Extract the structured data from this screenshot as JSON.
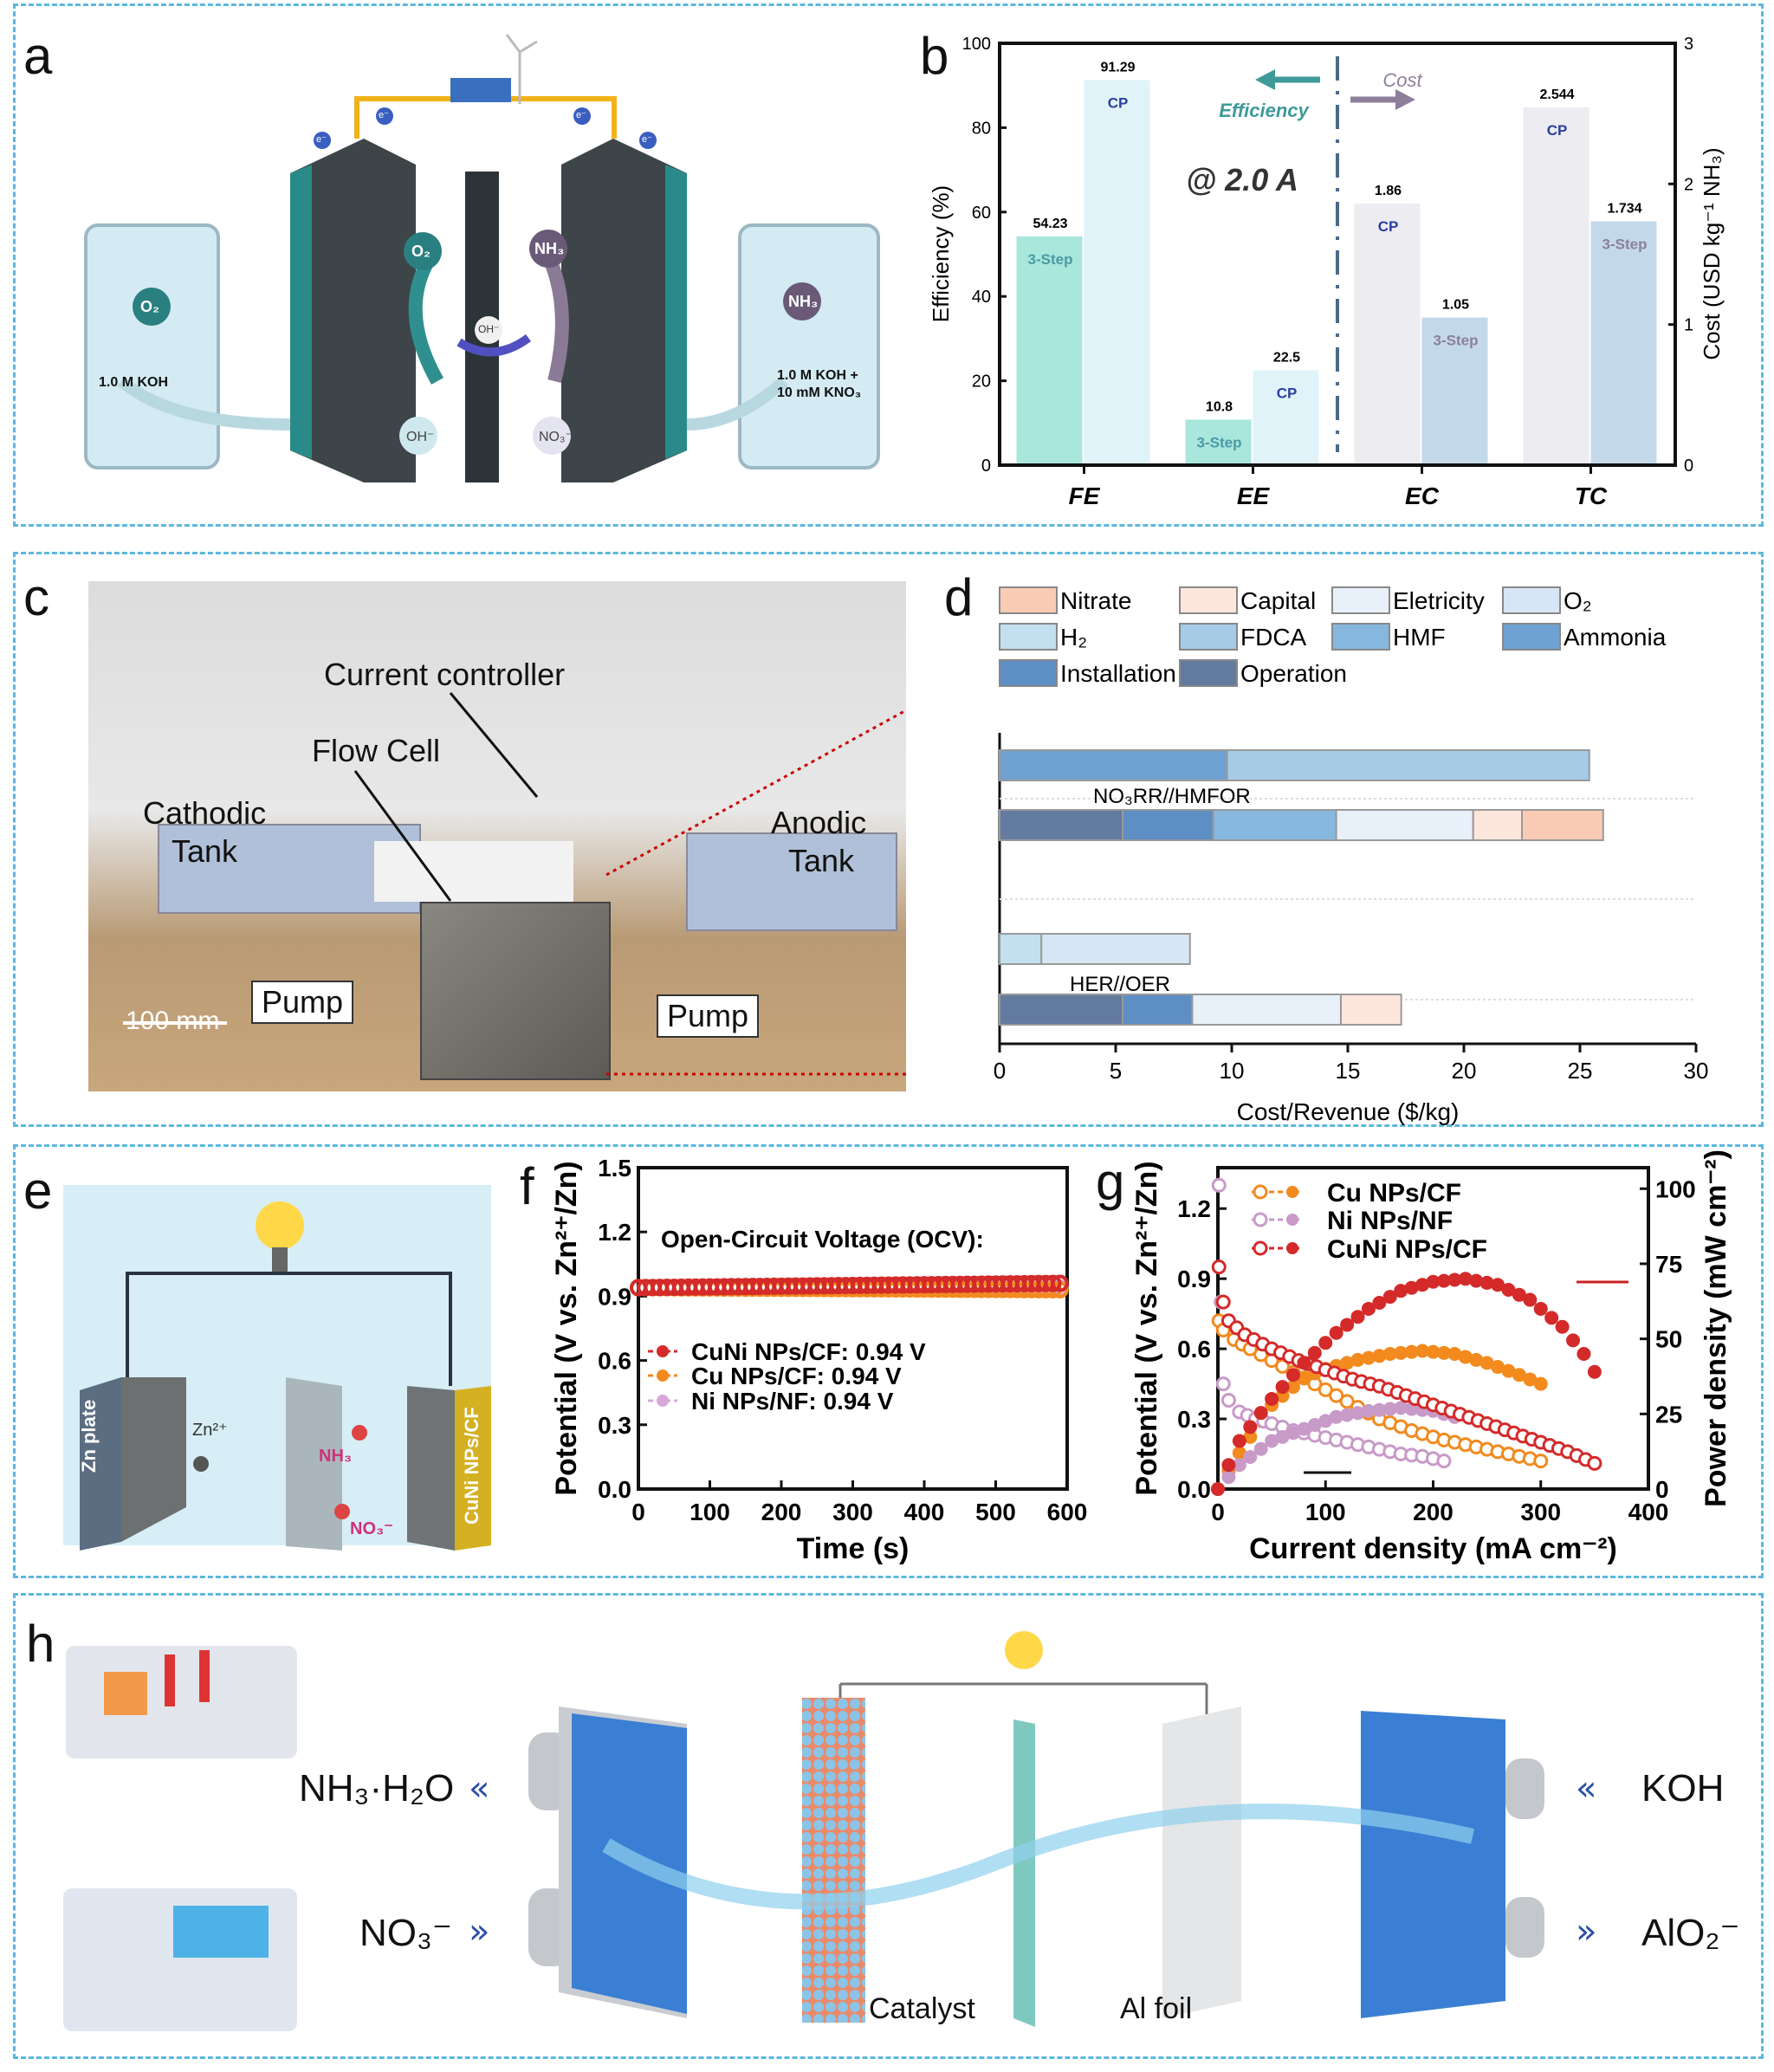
{
  "panel_labels": {
    "a": "a",
    "b": "b",
    "c": "c",
    "d": "d",
    "e": "e",
    "f": "f",
    "g": "g",
    "h": "h"
  },
  "panel_a": {
    "left_tank_label": "1.0 M KOH",
    "right_tank_label_1": "1.0 M KOH +",
    "right_tank_label_2": "10 mM KNO₃",
    "o2": "O₂",
    "nh3": "NH₃",
    "oh": "OH⁻",
    "no3": "NO₃⁻",
    "electron": "e⁻"
  },
  "panel_c": {
    "current_controller": "Current controller",
    "flow_cell": "Flow Cell",
    "cathodic_1": "Cathodic",
    "cathodic_2": "Tank",
    "anodic_1": "Anodic",
    "anodic_2": "Tank",
    "pump_left": "Pump",
    "pump_right": "Pump",
    "scale_bar": "100 mm"
  },
  "panel_e": {
    "zn_plate": "Zn plate",
    "cathode": "CuNi NPs/CF",
    "zn_ion": "Zn²⁺",
    "nh3": "NH₃",
    "no3": "NO₃⁻"
  },
  "panel_h": {
    "nh3_h2o": "NH₃·H₂O",
    "no3": "NO₃⁻",
    "koh": "KOH",
    "alo2": "AlO₂⁻",
    "catalyst": "Catalyst",
    "al_foil": "Al foil"
  },
  "chart_data": [
    {
      "id": "b",
      "type": "bar",
      "ylabel": "Efficiency (%)",
      "ylabel_right": "Cost (USD kg⁻¹ NH₃)",
      "ylim": [
        0,
        100
      ],
      "ylim_right": [
        0,
        3
      ],
      "yticks": [
        "0",
        "20",
        "40",
        "60",
        "80",
        "100"
      ],
      "yticks_right": [
        "0",
        "1",
        "2",
        "3"
      ],
      "annotation_condition": "@ 2.0 A",
      "annotation_left": "Efficiency",
      "annotation_right": "Cost",
      "categories": [
        {
          "name": "FE",
          "axis": "left",
          "bars": [
            {
              "label": "3-Step",
              "value": 54.23,
              "value_text": "54.23",
              "color": "#a9e6dc",
              "label_color": "#4a9aa4"
            },
            {
              "label": "CP",
              "value": 91.29,
              "value_text": "91.29",
              "color": "#e0f3f9",
              "label_color": "#2a3ea0"
            }
          ]
        },
        {
          "name": "EE",
          "axis": "left",
          "bars": [
            {
              "label": "3-Step",
              "value": 10.8,
              "value_text": "10.8",
              "color": "#a9e6dc",
              "label_color": "#4a9aa4"
            },
            {
              "label": "CP",
              "value": 22.5,
              "value_text": "22.5",
              "color": "#e0f3f9",
              "label_color": "#2a3ea0"
            }
          ]
        },
        {
          "name": "EC",
          "axis": "right",
          "bars": [
            {
              "label": "CP",
              "value": 1.86,
              "value_text": "1.86",
              "color": "#ececf1",
              "label_color": "#2a3ea0"
            },
            {
              "label": "3-Step",
              "value": 1.05,
              "value_text": "1.05",
              "color": "#c3d9ea",
              "label_color": "#8d7f9a"
            }
          ]
        },
        {
          "name": "TC",
          "axis": "right",
          "bars": [
            {
              "label": "CP",
              "value": 2.544,
              "value_text": "2.544",
              "color": "#ececf1",
              "label_color": "#2a3ea0"
            },
            {
              "label": "3-Step",
              "value": 1.734,
              "value_text": "1.734",
              "color": "#c3d9ea",
              "label_color": "#8d7f9a"
            }
          ]
        }
      ]
    },
    {
      "id": "d",
      "type": "bar",
      "orientation": "horizontal-stacked",
      "xlabel": "Cost/Revenue ($/kg)",
      "xlim": [
        0,
        30
      ],
      "xticks": [
        "0",
        "5",
        "10",
        "15",
        "20",
        "25",
        "30"
      ],
      "legend": [
        {
          "name": "Nitrate",
          "color": "#f9cbb5"
        },
        {
          "name": "Capital",
          "color": "#fde6dc"
        },
        {
          "name": "Eletricity",
          "color": "#e8f1fa"
        },
        {
          "name": "O₂",
          "color": "#d7e6f4"
        },
        {
          "name": "H₂",
          "color": "#c3dff0"
        },
        {
          "name": "FDCA",
          "color": "#a5cbe6"
        },
        {
          "name": "HMF",
          "color": "#86b8df"
        },
        {
          "name": "Ammonia",
          "color": "#6fa2d2"
        },
        {
          "name": "Installation",
          "color": "#5d8ec4"
        },
        {
          "name": "Operation",
          "color": "#647ba0"
        }
      ],
      "groups": [
        {
          "name": "NO₃RR//HMFOR",
          "rows": [
            [
              {
                "component": "Ammonia",
                "value": 9.8
              },
              {
                "component": "FDCA",
                "value": 15.6
              }
            ],
            [
              {
                "component": "Operation",
                "value": 5.3
              },
              {
                "component": "Installation",
                "value": 3.9
              },
              {
                "component": "HMF",
                "value": 5.3
              },
              {
                "component": "Eletricity",
                "value": 5.9
              },
              {
                "component": "Capital",
                "value": 2.1
              },
              {
                "component": "Nitrate",
                "value": 3.5
              }
            ]
          ]
        },
        {
          "name": "HER//OER",
          "rows": [
            [
              {
                "component": "H₂",
                "value": 1.8
              },
              {
                "component": "O₂",
                "value": 6.4
              }
            ],
            [
              {
                "component": "Operation",
                "value": 5.3
              },
              {
                "component": "Installation",
                "value": 3.0
              },
              {
                "component": "Eletricity",
                "value": 6.4
              },
              {
                "component": "Capital",
                "value": 2.6
              }
            ]
          ]
        }
      ]
    },
    {
      "id": "f",
      "type": "scatter",
      "xlabel": "Time (s)",
      "ylabel": "Potential (V vs. Zn²⁺/Zn)",
      "xlim": [
        0,
        600
      ],
      "ylim": [
        0,
        1.5
      ],
      "xticks": [
        "0",
        "100",
        "200",
        "300",
        "400",
        "500",
        "600"
      ],
      "yticks": [
        "0.0",
        "0.3",
        "0.6",
        "0.9",
        "1.2",
        "1.5"
      ],
      "title": "Open-Circuit Voltage (OCV):",
      "series": [
        {
          "name": "Ni NPs/NF: 0.94 V",
          "color": "#d8a8d8",
          "points": [
            [
              0,
              0.94
            ],
            [
              590,
              0.94
            ]
          ]
        },
        {
          "name": "Cu NPs/CF: 0.94 V",
          "color": "#f28a1e",
          "points": [
            [
              0,
              0.94
            ],
            [
              590,
              0.93
            ]
          ]
        },
        {
          "name": "CuNi NPs/CF: 0.94 V",
          "color": "#d42a2a",
          "points": [
            [
              0,
              0.94
            ],
            [
              590,
              0.96
            ]
          ]
        }
      ]
    },
    {
      "id": "g",
      "type": "line",
      "xlabel": "Current density (mA cm⁻²)",
      "ylabel": "Potential (V vs. Zn²⁺/Zn)",
      "ylabel_right": "Power density (mW cm⁻²)",
      "xlim": [
        0,
        400
      ],
      "ylim": [
        0,
        1.375
      ],
      "ylim_right": [
        0,
        107
      ],
      "xticks": [
        "0",
        "100",
        "200",
        "300",
        "400"
      ],
      "yticks": [
        "0.0",
        "0.3",
        "0.6",
        "0.9",
        "1.2"
      ],
      "yticks_right": [
        "0",
        "25",
        "50",
        "75",
        "100"
      ],
      "series": [
        {
          "name": "Cu NPs/CF",
          "color": "#f28a1e",
          "potential": [
            [
              1,
              0.72
            ],
            [
              5,
              0.68
            ],
            [
              15,
              0.64
            ],
            [
              30,
              0.6
            ],
            [
              50,
              0.55
            ],
            [
              70,
              0.5
            ],
            [
              90,
              0.45
            ],
            [
              110,
              0.4
            ],
            [
              130,
              0.35
            ],
            [
              150,
              0.3
            ],
            [
              180,
              0.25
            ],
            [
              210,
              0.21
            ],
            [
              240,
              0.18
            ],
            [
              270,
              0.15
            ],
            [
              300,
              0.12
            ]
          ],
          "power": [
            [
              0,
              0
            ],
            [
              20,
              12
            ],
            [
              50,
              28
            ],
            [
              80,
              37
            ],
            [
              100,
              40
            ],
            [
              130,
              43
            ],
            [
              160,
              45
            ],
            [
              190,
              46
            ],
            [
              220,
              45
            ],
            [
              250,
              42
            ],
            [
              280,
              38
            ],
            [
              300,
              35
            ]
          ]
        },
        {
          "name": "Ni NPs/NF",
          "color": "#c89ac8",
          "potential": [
            [
              1,
              1.3
            ],
            [
              3,
              0.8
            ],
            [
              5,
              0.45
            ],
            [
              10,
              0.38
            ],
            [
              20,
              0.33
            ],
            [
              35,
              0.3
            ],
            [
              50,
              0.28
            ],
            [
              70,
              0.25
            ],
            [
              90,
              0.23
            ],
            [
              110,
              0.21
            ],
            [
              130,
              0.19
            ],
            [
              150,
              0.17
            ],
            [
              170,
              0.15
            ],
            [
              190,
              0.14
            ],
            [
              210,
              0.12
            ]
          ],
          "power": [
            [
              0,
              0
            ],
            [
              20,
              8
            ],
            [
              50,
              16
            ],
            [
              80,
              20
            ],
            [
              110,
              24
            ],
            [
              140,
              26
            ],
            [
              170,
              27
            ],
            [
              200,
              26
            ],
            [
              220,
              24
            ]
          ]
        },
        {
          "name": "CuNi NPs/CF",
          "color": "#d42a2a",
          "potential": [
            [
              1,
              0.95
            ],
            [
              5,
              0.8
            ],
            [
              10,
              0.72
            ],
            [
              25,
              0.66
            ],
            [
              50,
              0.6
            ],
            [
              75,
              0.55
            ],
            [
              100,
              0.51
            ],
            [
              125,
              0.47
            ],
            [
              150,
              0.44
            ],
            [
              175,
              0.4
            ],
            [
              200,
              0.36
            ],
            [
              225,
              0.32
            ],
            [
              250,
              0.28
            ],
            [
              275,
              0.24
            ],
            [
              300,
              0.2
            ],
            [
              325,
              0.16
            ],
            [
              350,
              0.11
            ]
          ],
          "power": [
            [
              0,
              0
            ],
            [
              20,
              16
            ],
            [
              50,
              30
            ],
            [
              80,
              42
            ],
            [
              110,
              52
            ],
            [
              140,
              60
            ],
            [
              170,
              66
            ],
            [
              200,
              69
            ],
            [
              230,
              70
            ],
            [
              260,
              68
            ],
            [
              290,
              63
            ],
            [
              320,
              54
            ],
            [
              340,
              45
            ],
            [
              350,
              39
            ]
          ]
        }
      ]
    }
  ]
}
